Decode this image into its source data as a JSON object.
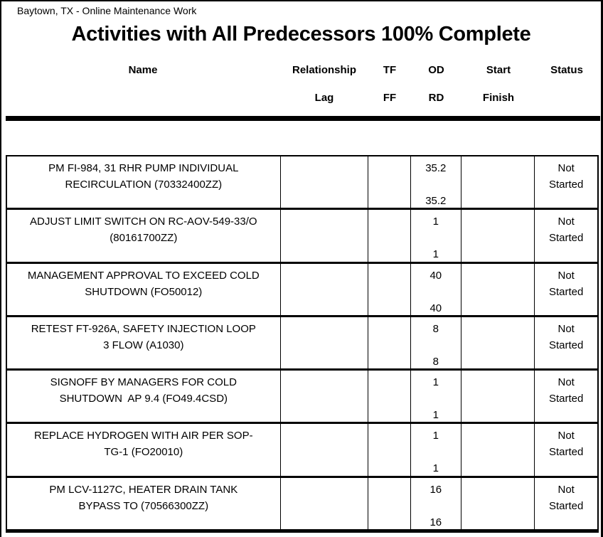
{
  "page": {
    "report_label": "Baytown, TX - Online Maintenance Work",
    "title": "Activities with All Predecessors 100% Complete"
  },
  "colors": {
    "text": "#000000",
    "background": "#ffffff",
    "border": "#000000"
  },
  "table": {
    "columns": [
      {
        "id": "name",
        "line1": "Name",
        "line2": ""
      },
      {
        "id": "relationship",
        "line1": "Relationship",
        "line2": "Lag"
      },
      {
        "id": "tf",
        "line1": "TF",
        "line2": "FF"
      },
      {
        "id": "od",
        "line1": "OD",
        "line2": "RD"
      },
      {
        "id": "start",
        "line1": "Start",
        "line2": "Finish"
      },
      {
        "id": "status",
        "line1": "Status",
        "line2": ""
      }
    ],
    "rows": [
      {
        "name1": "PM FI-984, 31 RHR PUMP INDIVIDUAL",
        "name2": "RECIRCULATION (70332400ZZ)",
        "relationship": "",
        "lag": "",
        "tf": "",
        "ff": "",
        "od": "35.2",
        "rd": "35.2",
        "start": "",
        "finish": "",
        "status1": "Not",
        "status2": "Started"
      },
      {
        "name1": "ADJUST LIMIT SWITCH ON RC-AOV-549-33/O",
        "name2": "(80161700ZZ)",
        "relationship": "",
        "lag": "",
        "tf": "",
        "ff": "",
        "od": "1",
        "rd": "1",
        "start": "",
        "finish": "",
        "status1": "Not",
        "status2": "Started"
      },
      {
        "name1": "MANAGEMENT APPROVAL TO EXCEED COLD",
        "name2": "SHUTDOWN (FO50012)",
        "relationship": "",
        "lag": "",
        "tf": "",
        "ff": "",
        "od": "40",
        "rd": "40",
        "start": "",
        "finish": "",
        "status1": "Not",
        "status2": "Started"
      },
      {
        "name1": "RETEST FT-926A, SAFETY INJECTION LOOP",
        "name2": "3 FLOW (A1030)",
        "relationship": "",
        "lag": "",
        "tf": "",
        "ff": "",
        "od": "8",
        "rd": "8",
        "start": "",
        "finish": "",
        "status1": "Not",
        "status2": "Started"
      },
      {
        "name1": "SIGNOFF BY MANAGERS FOR COLD",
        "name2": "SHUTDOWN  AP 9.4 (FO49.4CSD)",
        "relationship": "",
        "lag": "",
        "tf": "",
        "ff": "",
        "od": "1",
        "rd": "1",
        "start": "",
        "finish": "",
        "status1": "Not",
        "status2": "Started"
      },
      {
        "name1": "REPLACE HYDROGEN WITH AIR PER SOP-",
        "name2": "TG-1 (FO20010)",
        "relationship": "",
        "lag": "",
        "tf": "",
        "ff": "",
        "od": "1",
        "rd": "1",
        "start": "",
        "finish": "",
        "status1": "Not",
        "status2": "Started"
      },
      {
        "name1": "PM LCV-1127C, HEATER DRAIN TANK",
        "name2": "BYPASS TO (70566300ZZ)",
        "relationship": "",
        "lag": "",
        "tf": "",
        "ff": "",
        "od": "16",
        "rd": "16",
        "start": "",
        "finish": "",
        "status1": "Not",
        "status2": "Started"
      }
    ]
  }
}
